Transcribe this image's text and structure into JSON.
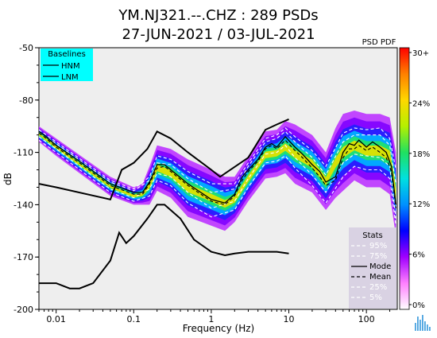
{
  "chart_data": {
    "type": "heatmap",
    "title_line1": "YM.NJ321.--.CHZ : 289 PSDs",
    "title_line2": "27-JUN-2021 / 03-JUL-2021",
    "xlabel": "Frequency (Hz)",
    "ylabel": "dB",
    "x_scale": "log",
    "xlim": [
      0.006,
      250
    ],
    "ylim": [
      -200,
      -50
    ],
    "x_ticks": [
      {
        "value": 0.01,
        "label": "0.01"
      },
      {
        "value": 0.1,
        "label": "0.1"
      },
      {
        "value": 1,
        "label": "1"
      },
      {
        "value": 10,
        "label": "10"
      },
      {
        "value": 100,
        "label": "100"
      }
    ],
    "y_ticks": [
      {
        "value": -50,
        "label": "-50"
      },
      {
        "value": -80,
        "label": "-80"
      },
      {
        "value": -110,
        "label": "-110"
      },
      {
        "value": -140,
        "label": "-140"
      },
      {
        "value": -170,
        "label": "-170"
      },
      {
        "value": -200,
        "label": "-200"
      }
    ],
    "colorbar": {
      "title": "PSD PDF",
      "ticks": [
        "30+",
        "24%",
        "18%",
        "12%",
        "6%",
        "0%"
      ],
      "colors": [
        "#ff0000",
        "#ff8000",
        "#ffd700",
        "#b5f000",
        "#20e060",
        "#00e0e0",
        "#0090ff",
        "#0000ff",
        "#a000ff",
        "#ff80ff",
        "#ffffff"
      ]
    },
    "baselines_legend": {
      "title": "Baselines",
      "entries": [
        "HNM",
        "LNM"
      ],
      "background": "#00ffff"
    },
    "stats_legend": {
      "title": "Stats",
      "entries": [
        "95%",
        "75%",
        "Mode",
        "Mean",
        "25%",
        "5%"
      ],
      "background": "#d9d2e3"
    },
    "hnm": {
      "x": [
        0.006,
        0.01,
        0.05,
        0.07,
        0.1,
        0.15,
        0.2,
        0.3,
        0.5,
        1,
        1.3,
        3,
        5,
        7,
        10
      ],
      "y": [
        -128,
        -130,
        -137,
        -120,
        -116,
        -108,
        -98,
        -102,
        -110,
        -120,
        -124,
        -113,
        -97,
        -94,
        -91
      ]
    },
    "lnm": {
      "x": [
        0.006,
        0.01,
        0.015,
        0.02,
        0.03,
        0.05,
        0.065,
        0.08,
        0.1,
        0.15,
        0.2,
        0.25,
        0.4,
        0.6,
        1,
        1.5,
        2,
        3,
        5,
        7,
        10
      ],
      "y": [
        -185,
        -185,
        -188,
        -188,
        -185,
        -172,
        -156,
        -162,
        -158,
        -148,
        -140,
        -140,
        -148,
        -160,
        -167,
        -169,
        -168,
        -167,
        -167,
        -167,
        -168
      ]
    },
    "mode": {
      "x": [
        0.006,
        0.007,
        0.01,
        0.02,
        0.05,
        0.1,
        0.13,
        0.16,
        0.2,
        0.25,
        0.3,
        0.5,
        1,
        1.5,
        2,
        2.5,
        3,
        4,
        5,
        6,
        7,
        9,
        12,
        15,
        20,
        25,
        30,
        40,
        50,
        60,
        70,
        80,
        100,
        120,
        150,
        180,
        210,
        240
      ],
      "y": [
        -98,
        -100,
        -106,
        -115,
        -128,
        -133,
        -133,
        -127,
        -117,
        -117,
        -120,
        -128,
        -137,
        -139,
        -134,
        -124,
        -120,
        -114,
        -107,
        -105,
        -107,
        -101,
        -107,
        -111,
        -117,
        -121,
        -127,
        -124,
        -110,
        -105,
        -106,
        -103,
        -107,
        -104,
        -107,
        -110,
        -118,
        -140
      ]
    },
    "mean": {
      "x": [
        0.006,
        0.007,
        0.01,
        0.02,
        0.05,
        0.1,
        0.13,
        0.16,
        0.2,
        0.25,
        0.3,
        0.5,
        1,
        1.5,
        2,
        2.5,
        3,
        4,
        5,
        6,
        7,
        9,
        12,
        15,
        20,
        25,
        30,
        40,
        50,
        60,
        70,
        80,
        100,
        120,
        150,
        180,
        210,
        240
      ],
      "y": [
        -99,
        -101,
        -107,
        -116,
        -129,
        -134,
        -134,
        -128,
        -119,
        -118,
        -121,
        -129,
        -138,
        -140,
        -135,
        -126,
        -121,
        -115,
        -108,
        -106,
        -108,
        -103,
        -109,
        -113,
        -119,
        -124,
        -129,
        -126,
        -113,
        -108,
        -108,
        -106,
        -109,
        -107,
        -110,
        -113,
        -121,
        -142
      ]
    },
    "p95": {
      "x": [
        0.006,
        0.01,
        0.05,
        0.1,
        0.16,
        0.2,
        0.3,
        0.5,
        1,
        2,
        3,
        5,
        7,
        9,
        12,
        20,
        30,
        50,
        70,
        100,
        150,
        200,
        240
      ],
      "y": [
        -97,
        -104,
        -126,
        -131,
        -124,
        -112,
        -114,
        -121,
        -128,
        -128,
        -116,
        -102,
        -100,
        -96,
        -101,
        -109,
        -118,
        -99,
        -96,
        -97,
        -96,
        -102,
        -120
      ]
    },
    "p75": {
      "x": [
        0.006,
        0.01,
        0.05,
        0.1,
        0.16,
        0.2,
        0.3,
        0.5,
        1,
        2,
        3,
        5,
        7,
        9,
        12,
        20,
        30,
        50,
        70,
        100,
        150,
        200,
        240
      ],
      "y": [
        -98,
        -105,
        -127,
        -132,
        -126,
        -116,
        -117,
        -125,
        -133,
        -131,
        -118,
        -104,
        -102,
        -98,
        -104,
        -113,
        -123,
        -104,
        -100,
        -100,
        -100,
        -106,
        -128
      ]
    },
    "p25": {
      "x": [
        0.006,
        0.01,
        0.05,
        0.1,
        0.16,
        0.2,
        0.3,
        0.5,
        1,
        2,
        3,
        5,
        7,
        9,
        12,
        20,
        30,
        50,
        70,
        100,
        150,
        200,
        240
      ],
      "y": [
        -101,
        -108,
        -131,
        -136,
        -131,
        -122,
        -124,
        -133,
        -142,
        -138,
        -125,
        -111,
        -110,
        -106,
        -113,
        -123,
        -133,
        -116,
        -111,
        -112,
        -113,
        -118,
        -148
      ]
    },
    "p5": {
      "x": [
        0.006,
        0.01,
        0.05,
        0.1,
        0.16,
        0.2,
        0.3,
        0.5,
        1,
        2,
        3,
        5,
        7,
        9,
        12,
        20,
        30,
        50,
        70,
        100,
        150,
        200,
        240
      ],
      "y": [
        -103,
        -110,
        -133,
        -138,
        -135,
        -126,
        -129,
        -139,
        -147,
        -143,
        -130,
        -116,
        -115,
        -112,
        -119,
        -129,
        -139,
        -124,
        -118,
        -120,
        -120,
        -125,
        -152
      ]
    },
    "density_band": {
      "x": [
        0.006,
        0.01,
        0.05,
        0.1,
        0.13,
        0.16,
        0.2,
        0.3,
        0.5,
        1,
        1.5,
        2,
        3,
        5,
        7,
        9,
        12,
        20,
        30,
        40,
        50,
        70,
        100,
        150,
        200,
        240
      ],
      "upper": [
        -95,
        -102,
        -124,
        -130,
        -128,
        -118,
        -106,
        -108,
        -114,
        -120,
        -124,
        -124,
        -112,
        -98,
        -97,
        -92,
        -94,
        -100,
        -110,
        -96,
        -88,
        -86,
        -88,
        -88,
        -90,
        -110
      ],
      "lower": [
        -104,
        -112,
        -135,
        -140,
        -140,
        -140,
        -132,
        -136,
        -147,
        -152,
        -155,
        -150,
        -138,
        -125,
        -124,
        -122,
        -128,
        -133,
        -143,
        -136,
        -132,
        -126,
        -130,
        -130,
        -134,
        -158
      ]
    }
  }
}
